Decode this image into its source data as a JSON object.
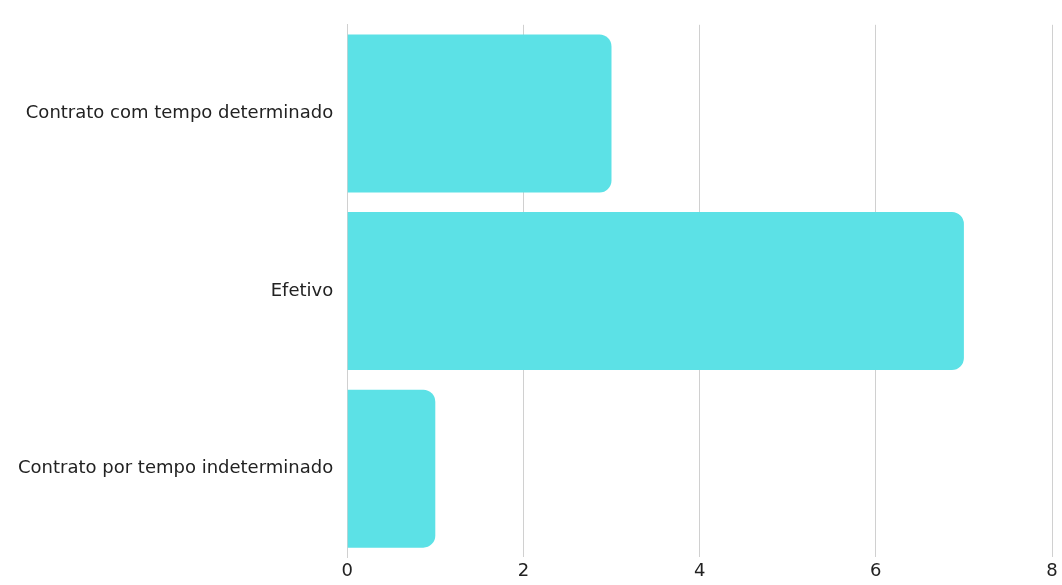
{
  "chart_data": {
    "type": "bar",
    "orientation": "horizontal",
    "categories": [
      "Contrato com tempo determinado",
      "Efetivo",
      "Contrato por tempo indeterminado"
    ],
    "values": [
      3,
      7,
      1
    ],
    "color": "#5ce1e6",
    "xlim": [
      0,
      8
    ],
    "xticks": [
      0,
      2,
      4,
      6,
      8
    ],
    "grid": "x",
    "legend": false
  }
}
